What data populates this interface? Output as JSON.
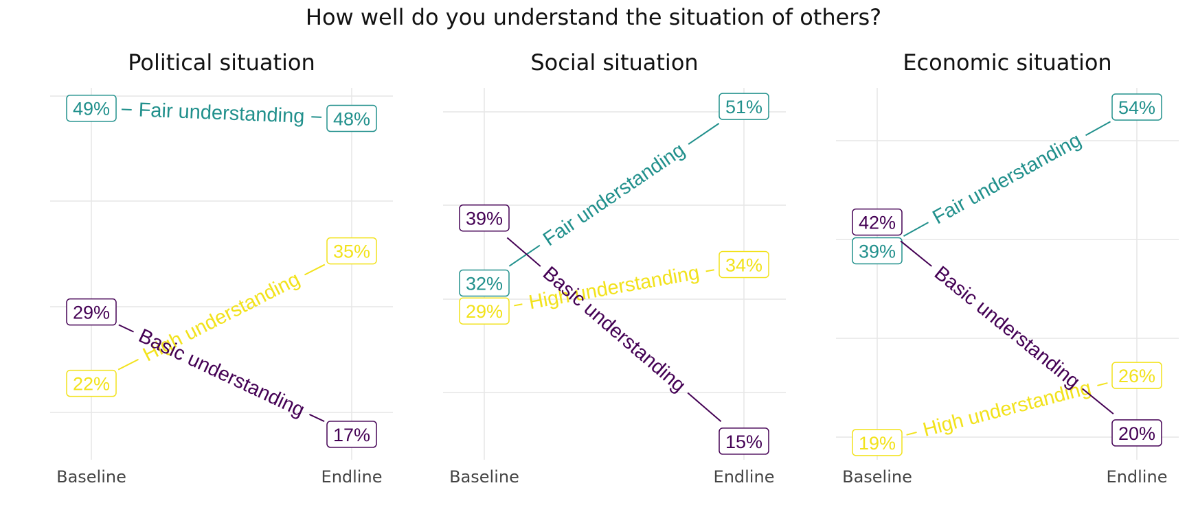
{
  "title": "How well do you understand the situation of others?",
  "colors": {
    "fair": "#21908C",
    "high": "#F2E21B",
    "basic": "#440154",
    "grid": "#E6E6E6",
    "tick_text": "#444444"
  },
  "chart_data": [
    {
      "type": "line",
      "title": "Political situation",
      "categories": [
        "Baseline",
        "Endline"
      ],
      "series": [
        {
          "key": "fair",
          "name": "Fair understanding",
          "values": [
            49,
            48
          ],
          "labels": [
            "49%",
            "48%"
          ]
        },
        {
          "key": "high",
          "name": "High understanding",
          "values": [
            22,
            35
          ],
          "labels": [
            "22%",
            "35%"
          ]
        },
        {
          "key": "basic",
          "name": "Basic understanding",
          "values": [
            29,
            17
          ],
          "labels": [
            "29%",
            "17%"
          ]
        }
      ],
      "ylim": [
        14.5,
        51.0
      ],
      "grid": true
    },
    {
      "type": "line",
      "title": "Social situation",
      "categories": [
        "Baseline",
        "Endline"
      ],
      "series": [
        {
          "key": "fair",
          "name": "Fair understanding",
          "values": [
            32,
            51
          ],
          "labels": [
            "32%",
            "51%"
          ]
        },
        {
          "key": "high",
          "name": "High understanding",
          "values": [
            29,
            34
          ],
          "labels": [
            "29%",
            "34%"
          ]
        },
        {
          "key": "basic",
          "name": "Basic understanding",
          "values": [
            39,
            15
          ],
          "labels": [
            "39%",
            "15%"
          ]
        }
      ],
      "ylim": [
        13.0,
        53.0
      ],
      "grid": true
    },
    {
      "type": "line",
      "title": "Economic situation",
      "categories": [
        "Baseline",
        "Endline"
      ],
      "series": [
        {
          "key": "fair",
          "name": "Fair understanding",
          "values": [
            39,
            54
          ],
          "labels": [
            "39%",
            "54%"
          ]
        },
        {
          "key": "high",
          "name": "High understanding",
          "values": [
            19,
            26
          ],
          "labels": [
            "19%",
            "26%"
          ]
        },
        {
          "key": "basic",
          "name": "Basic understanding",
          "values": [
            42,
            20
          ],
          "labels": [
            "42%",
            "20%"
          ]
        }
      ],
      "ylim": [
        17.2,
        56.0
      ],
      "grid": true
    }
  ]
}
